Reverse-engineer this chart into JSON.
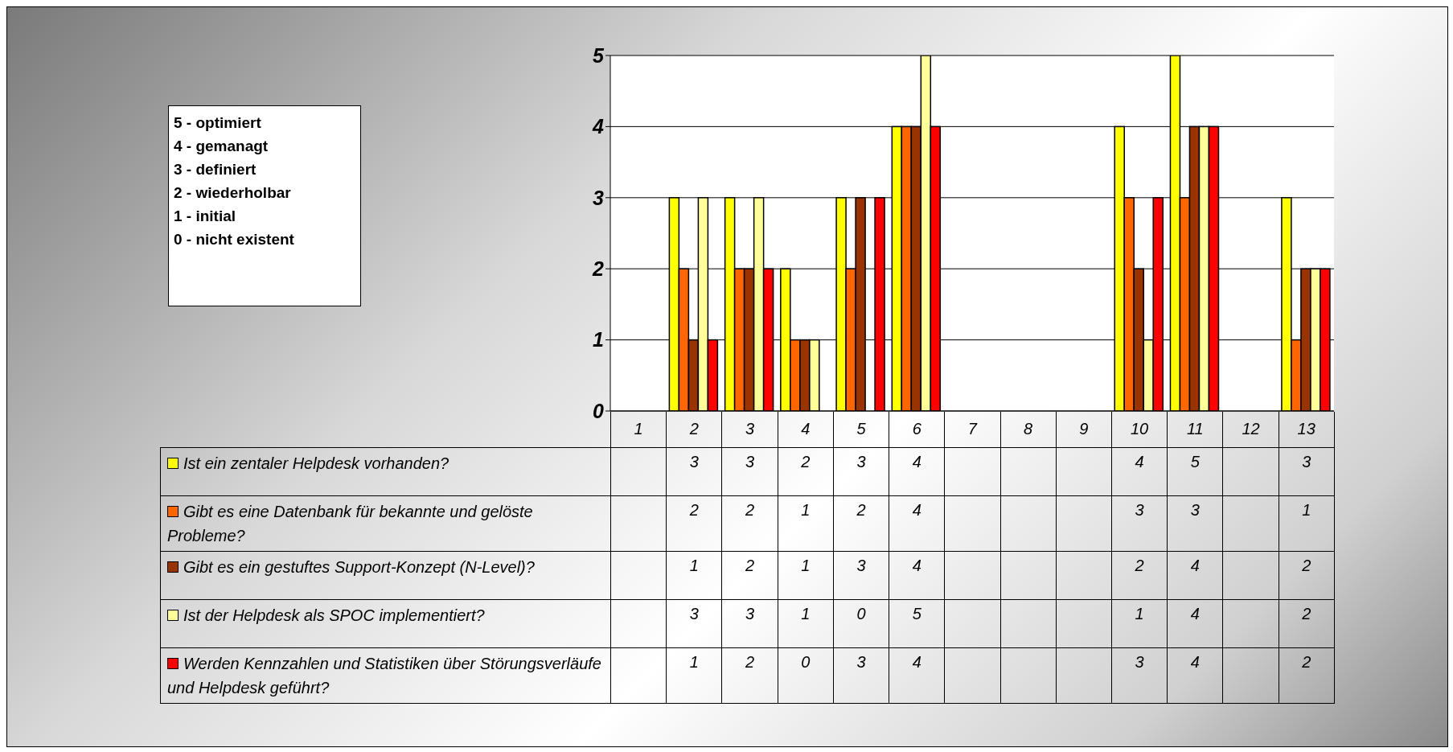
{
  "chart_data": {
    "type": "bar",
    "categories": [
      "1",
      "2",
      "3",
      "4",
      "5",
      "6",
      "7",
      "8",
      "9",
      "10",
      "11",
      "12",
      "13"
    ],
    "series": [
      {
        "name": "Ist ein zentaler Helpdesk vorhanden?",
        "color": "#ffff00",
        "values": [
          null,
          3,
          3,
          2,
          3,
          4,
          null,
          null,
          null,
          4,
          5,
          null,
          3
        ]
      },
      {
        "name": "Gibt es eine Datenbank für bekannte und gelöste Probleme?",
        "color": "#ff6600",
        "values": [
          null,
          2,
          2,
          1,
          2,
          4,
          null,
          null,
          null,
          3,
          3,
          null,
          1
        ]
      },
      {
        "name": "Gibt es ein gestuftes Support-Konzept (N-Level)?",
        "color": "#993300",
        "values": [
          null,
          1,
          2,
          1,
          3,
          4,
          null,
          null,
          null,
          2,
          4,
          null,
          2
        ]
      },
      {
        "name": "Ist der Helpdesk als SPOC implementiert?",
        "color": "#ffff99",
        "values": [
          null,
          3,
          3,
          1,
          0,
          5,
          null,
          null,
          null,
          1,
          4,
          null,
          2
        ]
      },
      {
        "name": "Werden Kennzahlen und Statistiken über Störungsverläufe und Helpdesk geführt?",
        "color": "#ff0000",
        "values": [
          null,
          1,
          2,
          0,
          3,
          4,
          null,
          null,
          null,
          3,
          4,
          null,
          2
        ]
      }
    ],
    "ylim": [
      0,
      5
    ],
    "yticks": [
      0,
      1,
      2,
      3,
      4,
      5
    ],
    "grid": "y",
    "legend": "bottom",
    "data_labels": true,
    "annotations": [
      "5 - optimiert",
      "4 - gemanagt",
      "3 - definiert",
      "2 - wiederholbar",
      "1 - initial",
      "0 - nicht existent"
    ]
  }
}
